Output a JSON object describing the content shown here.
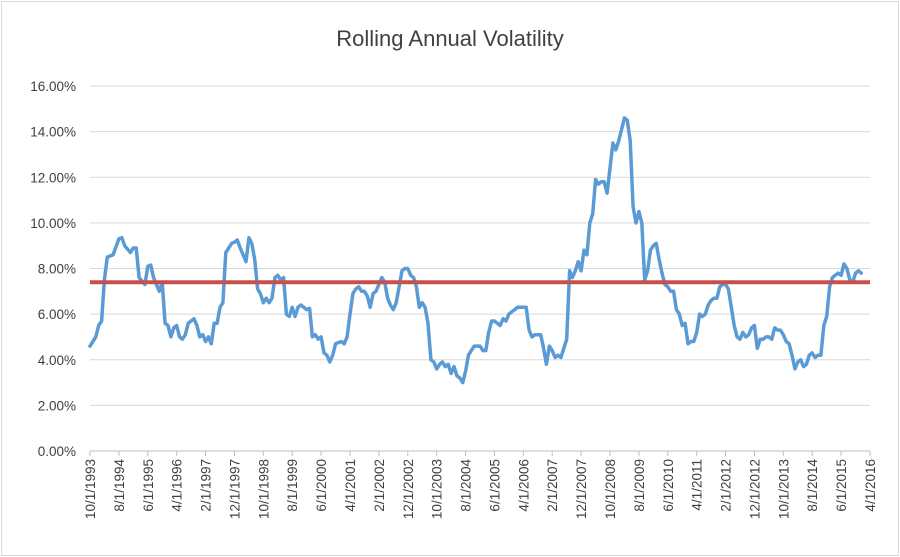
{
  "chart_data": {
    "type": "line",
    "title": "Rolling Annual Volatility",
    "xlabel": "",
    "ylabel": "",
    "ylim": [
      0,
      16
    ],
    "y_tick_labels": [
      "0.00%",
      "2.00%",
      "4.00%",
      "6.00%",
      "8.00%",
      "10.00%",
      "12.00%",
      "14.00%",
      "16.00%"
    ],
    "x_tick_labels": [
      "10/1/1993",
      "8/1/1994",
      "6/1/1995",
      "4/1/1996",
      "2/1/1997",
      "12/1/1997",
      "10/1/1998",
      "8/1/1999",
      "6/1/2000",
      "4/1/2001",
      "2/1/2002",
      "12/1/2002",
      "10/1/2003",
      "8/1/2004",
      "6/1/2005",
      "4/1/2006",
      "2/1/2007",
      "12/1/2007",
      "10/1/2008",
      "8/1/2009",
      "6/1/2010",
      "4/1/2011",
      "2/1/2012",
      "12/1/2012",
      "10/1/2013",
      "8/1/2014",
      "6/1/2015",
      "4/1/2016"
    ],
    "grid": true,
    "legend": "none",
    "x_range": [
      "1993-10",
      "2016-04"
    ],
    "series": [
      {
        "color": "#5b9bd5",
        "points": [
          [
            "1993-10",
            4.6
          ],
          [
            "1993-12",
            5.0
          ],
          [
            "1994-01",
            5.5
          ],
          [
            "1994-02",
            5.7
          ],
          [
            "1994-03",
            7.5
          ],
          [
            "1994-04",
            8.5
          ],
          [
            "1994-06",
            8.6
          ],
          [
            "1994-08",
            9.3
          ],
          [
            "1994-09",
            9.35
          ],
          [
            "1994-10",
            9.0
          ],
          [
            "1994-12",
            8.7
          ],
          [
            "1995-01",
            8.9
          ],
          [
            "1995-02",
            8.9
          ],
          [
            "1995-03",
            7.6
          ],
          [
            "1995-05",
            7.3
          ],
          [
            "1995-06",
            8.1
          ],
          [
            "1995-07",
            8.15
          ],
          [
            "1995-08",
            7.6
          ],
          [
            "1995-09",
            7.3
          ],
          [
            "1995-10",
            7.0
          ],
          [
            "1995-11",
            7.4
          ],
          [
            "1995-12",
            5.6
          ],
          [
            "1996-01",
            5.5
          ],
          [
            "1996-02",
            5.0
          ],
          [
            "1996-03",
            5.4
          ],
          [
            "1996-04",
            5.5
          ],
          [
            "1996-05",
            5.0
          ],
          [
            "1996-06",
            4.9
          ],
          [
            "1996-07",
            5.1
          ],
          [
            "1996-08",
            5.6
          ],
          [
            "1996-09",
            5.7
          ],
          [
            "1996-10",
            5.8
          ],
          [
            "1996-11",
            5.5
          ],
          [
            "1996-12",
            5.0
          ],
          [
            "1997-01",
            5.1
          ],
          [
            "1997-02",
            4.8
          ],
          [
            "1997-03",
            5.0
          ],
          [
            "1997-04",
            4.7
          ],
          [
            "1997-05",
            5.6
          ],
          [
            "1997-06",
            5.6
          ],
          [
            "1997-07",
            6.3
          ],
          [
            "1997-08",
            6.5
          ],
          [
            "1997-09",
            8.7
          ],
          [
            "1997-10",
            8.9
          ],
          [
            "1997-11",
            9.1
          ],
          [
            "1997-12",
            9.15
          ],
          [
            "1998-01",
            9.25
          ],
          [
            "1998-02",
            8.9
          ],
          [
            "1998-03",
            8.6
          ],
          [
            "1998-04",
            8.3
          ],
          [
            "1998-05",
            9.35
          ],
          [
            "1998-06",
            9.1
          ],
          [
            "1998-07",
            8.4
          ],
          [
            "1998-08",
            7.1
          ],
          [
            "1998-09",
            6.9
          ],
          [
            "1998-10",
            6.5
          ],
          [
            "1998-11",
            6.7
          ],
          [
            "1998-12",
            6.5
          ],
          [
            "1999-01",
            6.7
          ],
          [
            "1999-02",
            7.6
          ],
          [
            "1999-03",
            7.7
          ],
          [
            "1999-04",
            7.5
          ],
          [
            "1999-05",
            7.6
          ],
          [
            "1999-06",
            6.0
          ],
          [
            "1999-07",
            5.9
          ],
          [
            "1999-08",
            6.3
          ],
          [
            "1999-09",
            5.9
          ],
          [
            "1999-10",
            6.3
          ],
          [
            "1999-11",
            6.4
          ],
          [
            "2000-01",
            6.2
          ],
          [
            "2000-02",
            6.25
          ],
          [
            "2000-03",
            5.0
          ],
          [
            "2000-04",
            5.1
          ],
          [
            "2000-05",
            4.9
          ],
          [
            "2000-06",
            5.0
          ],
          [
            "2000-07",
            4.3
          ],
          [
            "2000-08",
            4.2
          ],
          [
            "2000-09",
            3.9
          ],
          [
            "2000-10",
            4.2
          ],
          [
            "2000-11",
            4.7
          ],
          [
            "2001-01",
            4.8
          ],
          [
            "2001-02",
            4.7
          ],
          [
            "2001-03",
            5.0
          ],
          [
            "2001-04",
            6.0
          ],
          [
            "2001-05",
            6.9
          ],
          [
            "2001-06",
            7.1
          ],
          [
            "2001-07",
            7.2
          ],
          [
            "2001-08",
            7.0
          ],
          [
            "2001-09",
            7.0
          ],
          [
            "2001-10",
            6.8
          ],
          [
            "2001-11",
            6.3
          ],
          [
            "2001-12",
            6.9
          ],
          [
            "2002-01",
            7.0
          ],
          [
            "2002-02",
            7.3
          ],
          [
            "2002-03",
            7.6
          ],
          [
            "2002-04",
            7.4
          ],
          [
            "2002-05",
            6.7
          ],
          [
            "2002-06",
            6.4
          ],
          [
            "2002-07",
            6.2
          ],
          [
            "2002-08",
            6.5
          ],
          [
            "2002-09",
            7.2
          ],
          [
            "2002-10",
            7.9
          ],
          [
            "2002-11",
            8.0
          ],
          [
            "2002-12",
            8.0
          ],
          [
            "2003-01",
            7.7
          ],
          [
            "2003-02",
            7.6
          ],
          [
            "2003-03",
            7.2
          ],
          [
            "2003-04",
            6.3
          ],
          [
            "2003-05",
            6.5
          ],
          [
            "2003-06",
            6.3
          ],
          [
            "2003-07",
            5.6
          ],
          [
            "2003-08",
            4.0
          ],
          [
            "2003-09",
            3.9
          ],
          [
            "2003-10",
            3.6
          ],
          [
            "2003-11",
            3.8
          ],
          [
            "2003-12",
            3.9
          ],
          [
            "2004-01",
            3.7
          ],
          [
            "2004-02",
            3.8
          ],
          [
            "2004-03",
            3.4
          ],
          [
            "2004-04",
            3.7
          ],
          [
            "2004-05",
            3.3
          ],
          [
            "2004-06",
            3.2
          ],
          [
            "2004-07",
            3.0
          ],
          [
            "2004-08",
            3.5
          ],
          [
            "2004-09",
            4.2
          ],
          [
            "2004-10",
            4.4
          ],
          [
            "2004-11",
            4.6
          ],
          [
            "2005-01",
            4.6
          ],
          [
            "2005-02",
            4.4
          ],
          [
            "2005-03",
            4.4
          ],
          [
            "2005-04",
            5.2
          ],
          [
            "2005-05",
            5.7
          ],
          [
            "2005-06",
            5.7
          ],
          [
            "2005-07",
            5.6
          ],
          [
            "2005-08",
            5.5
          ],
          [
            "2005-09",
            5.8
          ],
          [
            "2005-10",
            5.7
          ],
          [
            "2005-11",
            6.0
          ],
          [
            "2005-12",
            6.1
          ],
          [
            "2006-01",
            6.2
          ],
          [
            "2006-02",
            6.3
          ],
          [
            "2006-05",
            6.3
          ],
          [
            "2006-06",
            5.3
          ],
          [
            "2006-07",
            5.0
          ],
          [
            "2006-08",
            5.1
          ],
          [
            "2006-10",
            5.1
          ],
          [
            "2006-11",
            4.5
          ],
          [
            "2006-12",
            3.8
          ],
          [
            "2007-01",
            4.6
          ],
          [
            "2007-02",
            4.4
          ],
          [
            "2007-03",
            4.1
          ],
          [
            "2007-04",
            4.2
          ],
          [
            "2007-05",
            4.1
          ],
          [
            "2007-06",
            4.5
          ],
          [
            "2007-07",
            4.9
          ],
          [
            "2007-08",
            7.9
          ],
          [
            "2007-09",
            7.6
          ],
          [
            "2007-10",
            7.9
          ],
          [
            "2007-11",
            8.3
          ],
          [
            "2007-12",
            7.9
          ],
          [
            "2008-01",
            8.8
          ],
          [
            "2008-02",
            8.6
          ],
          [
            "2008-03",
            10.0
          ],
          [
            "2008-04",
            10.4
          ],
          [
            "2008-05",
            11.9
          ],
          [
            "2008-06",
            11.7
          ],
          [
            "2008-07",
            11.8
          ],
          [
            "2008-08",
            11.8
          ],
          [
            "2008-09",
            11.3
          ],
          [
            "2008-10",
            12.4
          ],
          [
            "2008-11",
            13.5
          ],
          [
            "2008-12",
            13.2
          ],
          [
            "2009-01",
            13.6
          ],
          [
            "2009-02",
            14.1
          ],
          [
            "2009-03",
            14.6
          ],
          [
            "2009-04",
            14.5
          ],
          [
            "2009-05",
            13.6
          ],
          [
            "2009-06",
            10.7
          ],
          [
            "2009-07",
            10.0
          ],
          [
            "2009-08",
            10.5
          ],
          [
            "2009-09",
            10.0
          ],
          [
            "2009-10",
            7.5
          ],
          [
            "2009-11",
            7.9
          ],
          [
            "2009-12",
            8.8
          ],
          [
            "2010-01",
            9.0
          ],
          [
            "2010-02",
            9.1
          ],
          [
            "2010-03",
            8.4
          ],
          [
            "2010-04",
            7.8
          ],
          [
            "2010-05",
            7.3
          ],
          [
            "2010-06",
            7.2
          ],
          [
            "2010-07",
            7.0
          ],
          [
            "2010-08",
            7.0
          ],
          [
            "2010-09",
            6.2
          ],
          [
            "2010-10",
            6.0
          ],
          [
            "2010-11",
            5.5
          ],
          [
            "2010-12",
            5.6
          ],
          [
            "2011-01",
            4.7
          ],
          [
            "2011-02",
            4.8
          ],
          [
            "2011-03",
            4.8
          ],
          [
            "2011-04",
            5.2
          ],
          [
            "2011-05",
            6.0
          ],
          [
            "2011-06",
            5.9
          ],
          [
            "2011-07",
            6.0
          ],
          [
            "2011-08",
            6.4
          ],
          [
            "2011-09",
            6.6
          ],
          [
            "2011-10",
            6.7
          ],
          [
            "2011-11",
            6.7
          ],
          [
            "2011-12",
            7.2
          ],
          [
            "2012-01",
            7.3
          ],
          [
            "2012-02",
            7.3
          ],
          [
            "2012-03",
            7.1
          ],
          [
            "2012-04",
            6.3
          ],
          [
            "2012-05",
            5.5
          ],
          [
            "2012-06",
            5.0
          ],
          [
            "2012-07",
            4.9
          ],
          [
            "2012-08",
            5.2
          ],
          [
            "2012-09",
            5.0
          ],
          [
            "2012-10",
            5.1
          ],
          [
            "2012-11",
            5.4
          ],
          [
            "2012-12",
            5.5
          ],
          [
            "2013-01",
            4.5
          ],
          [
            "2013-02",
            4.9
          ],
          [
            "2013-03",
            4.9
          ],
          [
            "2013-04",
            5.0
          ],
          [
            "2013-05",
            5.0
          ],
          [
            "2013-06",
            4.9
          ],
          [
            "2013-07",
            5.4
          ],
          [
            "2013-08",
            5.3
          ],
          [
            "2013-09",
            5.3
          ],
          [
            "2013-10",
            5.1
          ],
          [
            "2013-11",
            4.8
          ],
          [
            "2013-12",
            4.7
          ],
          [
            "2014-01",
            4.2
          ],
          [
            "2014-02",
            3.6
          ],
          [
            "2014-03",
            3.9
          ],
          [
            "2014-04",
            4.0
          ],
          [
            "2014-05",
            3.7
          ],
          [
            "2014-06",
            3.8
          ],
          [
            "2014-07",
            4.2
          ],
          [
            "2014-08",
            4.3
          ],
          [
            "2014-09",
            4.1
          ],
          [
            "2014-10",
            4.2
          ],
          [
            "2014-11",
            4.2
          ],
          [
            "2014-12",
            5.5
          ],
          [
            "2015-01",
            5.9
          ],
          [
            "2015-02",
            7.2
          ],
          [
            "2015-03",
            7.6
          ],
          [
            "2015-04",
            7.7
          ],
          [
            "2015-05",
            7.8
          ],
          [
            "2015-06",
            7.7
          ],
          [
            "2015-07",
            8.2
          ],
          [
            "2015-08",
            8.0
          ],
          [
            "2015-09",
            7.5
          ],
          [
            "2015-10",
            7.4
          ],
          [
            "2015-11",
            7.8
          ],
          [
            "2015-12",
            7.9
          ],
          [
            "2016-01",
            7.8
          ]
        ]
      }
    ],
    "reference_line": {
      "value": 7.4,
      "color": "#c8504c"
    }
  }
}
